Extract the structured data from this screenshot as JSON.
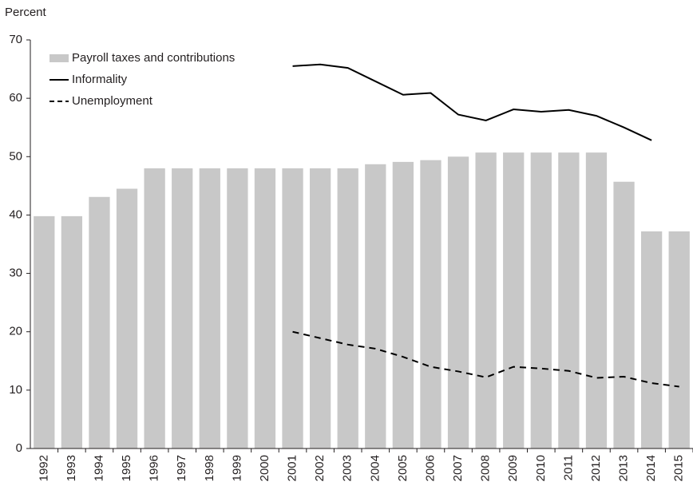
{
  "chart_data": {
    "type": "bar",
    "y_label": "Percent",
    "categories": [
      "1992",
      "1993",
      "1994",
      "1995",
      "1996",
      "1997",
      "1998",
      "1999",
      "2000",
      "2001",
      "2002",
      "2003",
      "2004",
      "2005",
      "2006",
      "2007",
      "2008",
      "2009",
      "2010",
      "2011",
      "2012",
      "2013",
      "2014",
      "2015"
    ],
    "series": [
      {
        "name": "Payroll taxes and contributions",
        "type": "bar",
        "color": "#c8c8c8",
        "values": [
          39.8,
          39.8,
          43.1,
          44.5,
          48,
          48,
          48,
          48,
          48,
          48,
          48,
          48,
          48.7,
          49.1,
          49.4,
          50,
          50.7,
          50.7,
          50.7,
          50.7,
          50.7,
          45.7,
          37.2,
          37.2
        ]
      },
      {
        "name": "Informality",
        "type": "line",
        "color": "#000000",
        "dashed": false,
        "values": [
          null,
          null,
          null,
          null,
          null,
          null,
          null,
          null,
          null,
          65.5,
          65.8,
          65.2,
          62.9,
          60.6,
          60.9,
          57.2,
          56.2,
          58.1,
          57.7,
          58.0,
          57.0,
          55.0,
          52.8,
          null
        ]
      },
      {
        "name": "Unemployment",
        "type": "line",
        "color": "#000000",
        "dashed": true,
        "values": [
          null,
          null,
          null,
          null,
          null,
          null,
          null,
          null,
          null,
          20.0,
          18.9,
          17.8,
          17.1,
          15.7,
          14.0,
          13.2,
          12.2,
          14.0,
          13.7,
          13.3,
          12.1,
          12.3,
          11.2,
          10.6
        ]
      }
    ],
    "ylim": [
      0,
      70
    ],
    "yticks": [
      0,
      10,
      20,
      30,
      40,
      50,
      60,
      70
    ],
    "legend": "upper left"
  }
}
